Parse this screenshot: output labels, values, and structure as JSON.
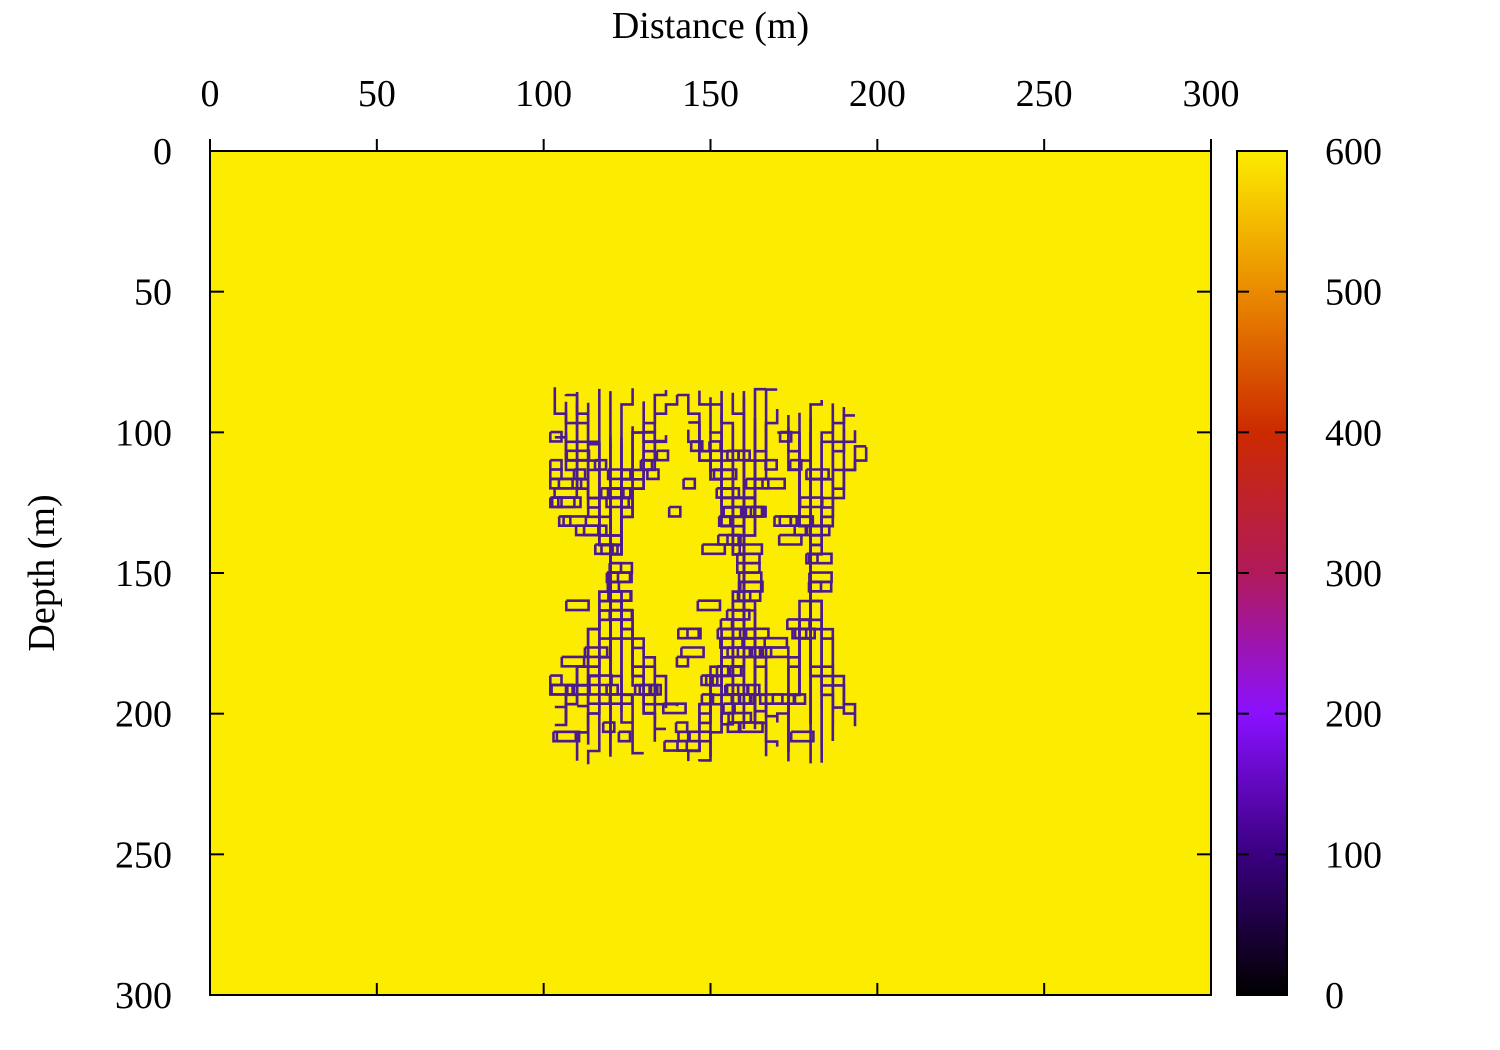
{
  "chart_data": {
    "type": "heatmap",
    "xlabel": "Distance (m)",
    "ylabel": "Depth (m)",
    "xlim": [
      0,
      300
    ],
    "ylim": [
      0,
      300
    ],
    "y_inverted": true,
    "x_axis_position": "top",
    "x_ticks": [
      "0",
      "50",
      "100",
      "150",
      "200",
      "250",
      "300"
    ],
    "y_ticks": [
      "0",
      "50",
      "100",
      "150",
      "200",
      "250",
      "300"
    ],
    "colorbar": {
      "range": [
        0,
        600
      ],
      "ticks": [
        "0",
        "100",
        "200",
        "300",
        "400",
        "500",
        "600"
      ],
      "colormap": "black-purple-red-orange-yellow",
      "stops": [
        "#000000",
        "#3a0080",
        "#8a10ff",
        "#b01a5a",
        "#cc2a00",
        "#ea8a00",
        "#fcec00"
      ]
    },
    "background_value": 600,
    "background_color": "#fcec00",
    "anomaly": {
      "description_value": 100,
      "color": "#4b1a8e",
      "x_range": [
        102,
        197
      ],
      "depth_range": [
        78,
        220
      ],
      "neck_depth": 150,
      "neck_x": [
        120,
        160,
        180
      ]
    }
  }
}
